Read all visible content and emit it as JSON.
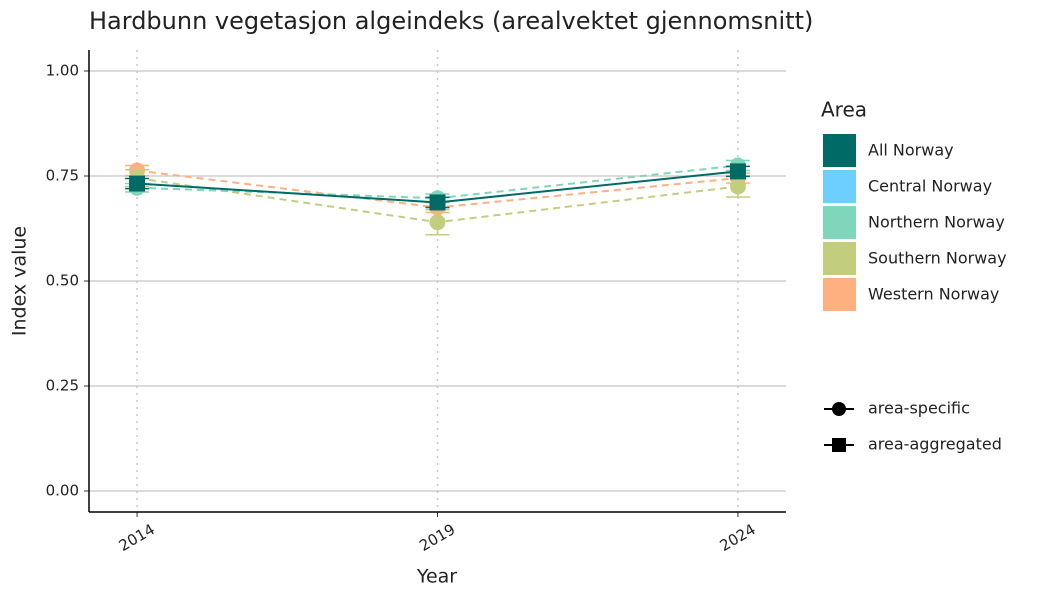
{
  "chart_data": {
    "type": "line",
    "title": "Hardbunn vegetasjon algeindeks (arealvektet gjennomsnitt)",
    "x_label": "Year",
    "y_label": "Index value",
    "x": [
      2014,
      2019,
      2024
    ],
    "xlim": [
      2013.2,
      2024.8
    ],
    "xticks": [
      2014,
      2019,
      2024
    ],
    "ylim": [
      -0.05,
      1.05
    ],
    "yticks": [
      {
        "value": 0,
        "label": "0.00"
      },
      {
        "value": 0.25,
        "label": "0.25"
      },
      {
        "value": 0.5,
        "label": "0.50"
      },
      {
        "value": 0.75,
        "label": "0.75"
      },
      {
        "value": 1,
        "label": "1.00"
      }
    ],
    "grid": true,
    "legend_title": "Area",
    "series": [
      {
        "name": "All Norway",
        "color": "#006b66",
        "marker": "square",
        "dash": "solid",
        "values": [
          0.732,
          0.687,
          0.761
        ],
        "errors": [
          0.012,
          0.012,
          0.012
        ]
      },
      {
        "name": "Central Norway",
        "color": "#6ccfff",
        "marker": "circle",
        "dash": "dashed",
        "values": [
          null,
          null,
          null
        ],
        "errors": [
          null,
          null,
          null
        ]
      },
      {
        "name": "Northern Norway",
        "color": "#80d6bb",
        "marker": "circle",
        "dash": "dashed",
        "values": [
          0.722,
          0.697,
          0.775
        ],
        "errors": [
          0.01,
          0.01,
          0.012
        ]
      },
      {
        "name": "Southern Norway",
        "color": "#c3cd7e",
        "marker": "circle",
        "dash": "dashed",
        "values": [
          0.745,
          0.64,
          0.725
        ],
        "errors": [
          0.02,
          0.03,
          0.025
        ]
      },
      {
        "name": "Western Norway",
        "color": "#ffb081",
        "marker": "circle",
        "dash": "dashed",
        "values": [
          0.763,
          0.675,
          0.745
        ],
        "errors": [
          0.012,
          0.012,
          0.012
        ]
      }
    ],
    "shape_legend": [
      {
        "label": "area-specific",
        "marker": "circle"
      },
      {
        "label": "area-aggregated",
        "marker": "square"
      }
    ]
  }
}
